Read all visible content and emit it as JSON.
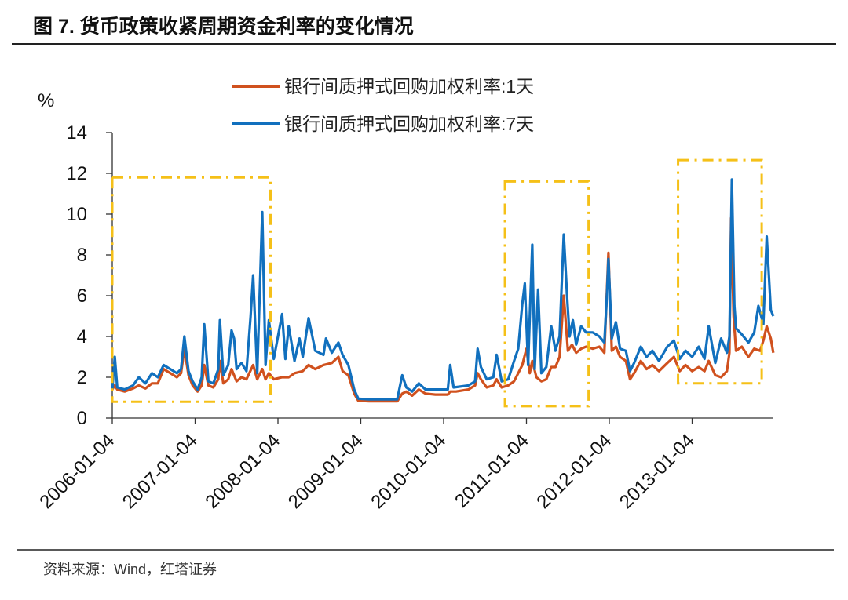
{
  "figure_title": "图 7. 货币政策收紧周期资金利率的变化情况",
  "source_note": "资料来源：Wind，红塔证券",
  "chart_data": {
    "type": "line",
    "title": "货币政策收紧周期资金利率的变化情况",
    "ylabel": "%",
    "xlabel": "",
    "ylim": [
      0,
      14
    ],
    "yticks": [
      "0",
      "2",
      "4",
      "6",
      "8",
      "10",
      "12",
      "14"
    ],
    "xlim": [
      2006.0,
      2013.98
    ],
    "xticks": [
      {
        "label": "2006-01-04",
        "t": 2006.0
      },
      {
        "label": "2007-01-04",
        "t": 2007.0
      },
      {
        "label": "2008-01-04",
        "t": 2008.0
      },
      {
        "label": "2009-01-04",
        "t": 2009.0
      },
      {
        "label": "2010-01-04",
        "t": 2010.0
      },
      {
        "label": "2011-01-04",
        "t": 2011.0
      },
      {
        "label": "2012-01-04",
        "t": 2012.0
      },
      {
        "label": "2013-01-04",
        "t": 2013.0
      }
    ],
    "grid": false,
    "legend_position": "top-center",
    "colors": {
      "s1": "#d0511e",
      "s7": "#1170be",
      "box": "#f5c018"
    },
    "series": [
      {
        "name": "银行间质押式回购加权利率:1天",
        "key": "s1",
        "points": [
          [
            2006.0,
            1.4
          ],
          [
            2006.03,
            1.6
          ],
          [
            2006.06,
            1.4
          ],
          [
            2006.15,
            1.3
          ],
          [
            2006.25,
            1.45
          ],
          [
            2006.32,
            1.6
          ],
          [
            2006.4,
            1.45
          ],
          [
            2006.48,
            1.7
          ],
          [
            2006.55,
            1.7
          ],
          [
            2006.62,
            2.4
          ],
          [
            2006.7,
            2.2
          ],
          [
            2006.78,
            2.0
          ],
          [
            2006.83,
            2.2
          ],
          [
            2006.87,
            3.4
          ],
          [
            2006.92,
            2.1
          ],
          [
            2006.97,
            1.6
          ],
          [
            2007.03,
            1.3
          ],
          [
            2007.08,
            1.6
          ],
          [
            2007.11,
            2.6
          ],
          [
            2007.16,
            1.6
          ],
          [
            2007.22,
            1.5
          ],
          [
            2007.28,
            1.9
          ],
          [
            2007.3,
            2.8
          ],
          [
            2007.34,
            1.7
          ],
          [
            2007.4,
            1.9
          ],
          [
            2007.44,
            2.4
          ],
          [
            2007.5,
            1.8
          ],
          [
            2007.56,
            2.0
          ],
          [
            2007.62,
            1.9
          ],
          [
            2007.7,
            2.6
          ],
          [
            2007.75,
            1.9
          ],
          [
            2007.81,
            2.4
          ],
          [
            2007.85,
            1.9
          ],
          [
            2007.89,
            2.2
          ],
          [
            2007.95,
            1.9
          ],
          [
            2008.05,
            2.0
          ],
          [
            2008.13,
            2.0
          ],
          [
            2008.2,
            2.2
          ],
          [
            2008.3,
            2.3
          ],
          [
            2008.37,
            2.6
          ],
          [
            2008.45,
            2.4
          ],
          [
            2008.55,
            2.6
          ],
          [
            2008.65,
            2.7
          ],
          [
            2008.73,
            3.0
          ],
          [
            2008.78,
            2.3
          ],
          [
            2008.85,
            2.1
          ],
          [
            2008.92,
            1.2
          ],
          [
            2008.97,
            0.85
          ],
          [
            2009.1,
            0.82
          ],
          [
            2009.3,
            0.82
          ],
          [
            2009.44,
            0.82
          ],
          [
            2009.5,
            1.2
          ],
          [
            2009.55,
            1.3
          ],
          [
            2009.62,
            1.1
          ],
          [
            2009.7,
            1.4
          ],
          [
            2009.78,
            1.2
          ],
          [
            2009.9,
            1.15
          ],
          [
            2010.05,
            1.15
          ],
          [
            2010.08,
            1.3
          ],
          [
            2010.15,
            1.3
          ],
          [
            2010.3,
            1.4
          ],
          [
            2010.38,
            1.6
          ],
          [
            2010.41,
            2.2
          ],
          [
            2010.45,
            1.9
          ],
          [
            2010.52,
            1.5
          ],
          [
            2010.6,
            1.6
          ],
          [
            2010.64,
            1.9
          ],
          [
            2010.7,
            1.5
          ],
          [
            2010.78,
            1.6
          ],
          [
            2010.85,
            1.8
          ],
          [
            2010.9,
            2.2
          ],
          [
            2010.95,
            2.6
          ],
          [
            2011.0,
            3.4
          ],
          [
            2011.04,
            2.2
          ],
          [
            2011.07,
            2.8
          ],
          [
            2011.12,
            2.0
          ],
          [
            2011.18,
            1.8
          ],
          [
            2011.24,
            1.9
          ],
          [
            2011.3,
            2.5
          ],
          [
            2011.35,
            2.5
          ],
          [
            2011.4,
            3.0
          ],
          [
            2011.45,
            6.0
          ],
          [
            2011.5,
            3.3
          ],
          [
            2011.55,
            3.6
          ],
          [
            2011.6,
            3.2
          ],
          [
            2011.66,
            3.4
          ],
          [
            2011.72,
            3.5
          ],
          [
            2011.8,
            3.4
          ],
          [
            2011.88,
            3.5
          ],
          [
            2011.94,
            3.2
          ],
          [
            2011.99,
            8.1
          ],
          [
            2012.03,
            3.3
          ],
          [
            2012.08,
            3.5
          ],
          [
            2012.13,
            3.0
          ],
          [
            2012.2,
            2.8
          ],
          [
            2012.25,
            1.9
          ],
          [
            2012.3,
            2.2
          ],
          [
            2012.38,
            2.8
          ],
          [
            2012.45,
            2.4
          ],
          [
            2012.52,
            2.6
          ],
          [
            2012.6,
            2.3
          ],
          [
            2012.7,
            2.7
          ],
          [
            2012.78,
            3.0
          ],
          [
            2012.85,
            2.3
          ],
          [
            2012.92,
            2.6
          ],
          [
            2013.0,
            2.3
          ],
          [
            2013.08,
            2.5
          ],
          [
            2013.15,
            2.3
          ],
          [
            2013.2,
            2.8
          ],
          [
            2013.28,
            2.1
          ],
          [
            2013.35,
            2.0
          ],
          [
            2013.42,
            2.3
          ],
          [
            2013.45,
            3.2
          ],
          [
            2013.47,
            9.8
          ],
          [
            2013.5,
            5.0
          ],
          [
            2013.53,
            3.3
          ],
          [
            2013.6,
            3.5
          ],
          [
            2013.68,
            3.0
          ],
          [
            2013.75,
            3.4
          ],
          [
            2013.82,
            3.3
          ],
          [
            2013.86,
            3.8
          ],
          [
            2013.9,
            4.5
          ],
          [
            2013.95,
            3.9
          ],
          [
            2013.98,
            3.2
          ]
        ]
      },
      {
        "name": "银行间质押式回购加权利率:7天",
        "key": "s7",
        "points": [
          [
            2006.0,
            1.4
          ],
          [
            2006.03,
            3.0
          ],
          [
            2006.06,
            1.5
          ],
          [
            2006.15,
            1.4
          ],
          [
            2006.25,
            1.6
          ],
          [
            2006.32,
            2.0
          ],
          [
            2006.4,
            1.7
          ],
          [
            2006.48,
            2.2
          ],
          [
            2006.55,
            2.0
          ],
          [
            2006.62,
            2.6
          ],
          [
            2006.7,
            2.4
          ],
          [
            2006.78,
            2.2
          ],
          [
            2006.83,
            2.4
          ],
          [
            2006.87,
            4.0
          ],
          [
            2006.92,
            2.3
          ],
          [
            2006.97,
            1.8
          ],
          [
            2007.03,
            1.4
          ],
          [
            2007.08,
            2.0
          ],
          [
            2007.11,
            4.6
          ],
          [
            2007.16,
            1.8
          ],
          [
            2007.22,
            1.7
          ],
          [
            2007.28,
            2.4
          ],
          [
            2007.3,
            4.8
          ],
          [
            2007.34,
            2.1
          ],
          [
            2007.4,
            2.6
          ],
          [
            2007.44,
            4.3
          ],
          [
            2007.47,
            3.9
          ],
          [
            2007.5,
            2.4
          ],
          [
            2007.56,
            2.7
          ],
          [
            2007.62,
            2.3
          ],
          [
            2007.67,
            5.0
          ],
          [
            2007.7,
            7.0
          ],
          [
            2007.75,
            2.2
          ],
          [
            2007.81,
            10.1
          ],
          [
            2007.85,
            2.6
          ],
          [
            2007.89,
            4.8
          ],
          [
            2007.95,
            2.9
          ],
          [
            2008.05,
            5.1
          ],
          [
            2008.09,
            2.9
          ],
          [
            2008.13,
            4.5
          ],
          [
            2008.2,
            2.8
          ],
          [
            2008.26,
            3.9
          ],
          [
            2008.3,
            3.0
          ],
          [
            2008.37,
            4.9
          ],
          [
            2008.45,
            3.3
          ],
          [
            2008.55,
            3.1
          ],
          [
            2008.58,
            3.9
          ],
          [
            2008.65,
            3.2
          ],
          [
            2008.73,
            3.7
          ],
          [
            2008.78,
            3.1
          ],
          [
            2008.85,
            2.6
          ],
          [
            2008.92,
            1.4
          ],
          [
            2008.97,
            0.95
          ],
          [
            2009.1,
            0.92
          ],
          [
            2009.3,
            0.92
          ],
          [
            2009.44,
            0.92
          ],
          [
            2009.5,
            2.1
          ],
          [
            2009.55,
            1.5
          ],
          [
            2009.62,
            1.3
          ],
          [
            2009.7,
            1.7
          ],
          [
            2009.78,
            1.4
          ],
          [
            2009.9,
            1.4
          ],
          [
            2010.05,
            1.4
          ],
          [
            2010.08,
            2.6
          ],
          [
            2010.12,
            1.5
          ],
          [
            2010.3,
            1.6
          ],
          [
            2010.38,
            1.8
          ],
          [
            2010.41,
            3.4
          ],
          [
            2010.45,
            2.5
          ],
          [
            2010.52,
            1.9
          ],
          [
            2010.6,
            2.0
          ],
          [
            2010.64,
            3.1
          ],
          [
            2010.7,
            1.8
          ],
          [
            2010.78,
            1.9
          ],
          [
            2010.85,
            2.8
          ],
          [
            2010.9,
            3.4
          ],
          [
            2010.95,
            5.6
          ],
          [
            2010.98,
            6.6
          ],
          [
            2011.02,
            2.6
          ],
          [
            2011.07,
            8.5
          ],
          [
            2011.1,
            2.4
          ],
          [
            2011.14,
            6.3
          ],
          [
            2011.18,
            2.2
          ],
          [
            2011.24,
            2.5
          ],
          [
            2011.3,
            4.5
          ],
          [
            2011.35,
            3.3
          ],
          [
            2011.4,
            4.0
          ],
          [
            2011.45,
            9.0
          ],
          [
            2011.49,
            6.0
          ],
          [
            2011.52,
            4.0
          ],
          [
            2011.56,
            4.8
          ],
          [
            2011.6,
            3.6
          ],
          [
            2011.66,
            4.5
          ],
          [
            2011.72,
            4.2
          ],
          [
            2011.8,
            4.2
          ],
          [
            2011.88,
            4.0
          ],
          [
            2011.94,
            3.7
          ],
          [
            2011.97,
            5.9
          ],
          [
            2011.99,
            7.8
          ],
          [
            2012.03,
            3.9
          ],
          [
            2012.08,
            4.7
          ],
          [
            2012.13,
            3.4
          ],
          [
            2012.2,
            3.3
          ],
          [
            2012.25,
            2.3
          ],
          [
            2012.3,
            2.7
          ],
          [
            2012.38,
            3.5
          ],
          [
            2012.45,
            3.0
          ],
          [
            2012.52,
            3.3
          ],
          [
            2012.6,
            2.8
          ],
          [
            2012.7,
            3.5
          ],
          [
            2012.78,
            3.8
          ],
          [
            2012.85,
            2.9
          ],
          [
            2012.92,
            3.3
          ],
          [
            2013.0,
            3.0
          ],
          [
            2013.08,
            3.5
          ],
          [
            2013.15,
            2.9
          ],
          [
            2013.2,
            4.5
          ],
          [
            2013.28,
            2.7
          ],
          [
            2013.35,
            3.9
          ],
          [
            2013.42,
            3.2
          ],
          [
            2013.45,
            4.0
          ],
          [
            2013.48,
            11.7
          ],
          [
            2013.51,
            5.5
          ],
          [
            2013.53,
            4.4
          ],
          [
            2013.6,
            4.1
          ],
          [
            2013.68,
            3.7
          ],
          [
            2013.75,
            4.2
          ],
          [
            2013.8,
            5.5
          ],
          [
            2013.86,
            4.6
          ],
          [
            2013.9,
            8.9
          ],
          [
            2013.95,
            5.3
          ],
          [
            2013.98,
            5.0
          ]
        ]
      }
    ],
    "highlight_boxes": [
      {
        "t0": 2006.0,
        "t1": 2007.91,
        "y0": 0.8,
        "y1": 11.8
      },
      {
        "t0": 2010.74,
        "t1": 2011.75,
        "y0": 0.58,
        "y1": 11.6
      },
      {
        "t0": 2012.83,
        "t1": 2013.84,
        "y0": 1.7,
        "y1": 12.65
      }
    ]
  }
}
